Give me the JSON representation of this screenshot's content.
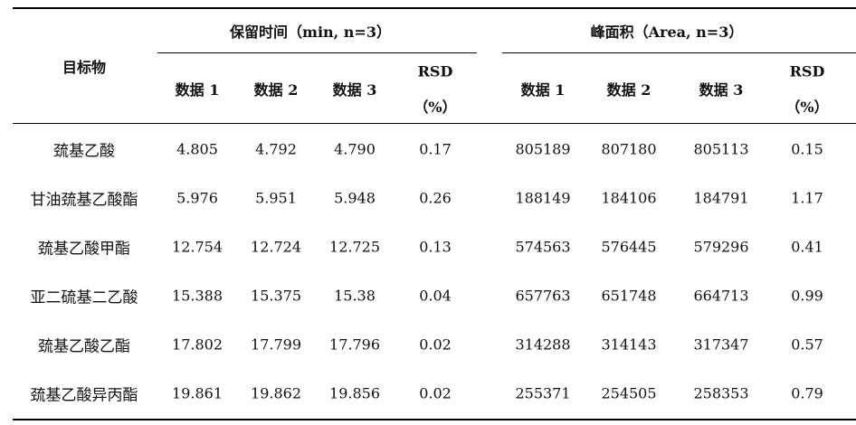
{
  "table": {
    "target_header": "目标物",
    "group_retention": "保留时间（min, n=3）",
    "group_area": "峰面积（Area, n=3）",
    "col_data1": "数据 1",
    "col_data2": "数据 2",
    "col_data3": "数据 3",
    "col_rsd": "RSD",
    "col_rsd_unit": "（%）",
    "rows": [
      {
        "name": "巯基乙酸",
        "rt": [
          "4.805",
          "4.792",
          "4.790",
          "0.17"
        ],
        "area": [
          "805189",
          "807180",
          "805113",
          "0.15"
        ]
      },
      {
        "name": "甘油巯基乙酸酯",
        "rt": [
          "5.976",
          "5.951",
          "5.948",
          "0.26"
        ],
        "area": [
          "188149",
          "184106",
          "184791",
          "1.17"
        ]
      },
      {
        "name": "巯基乙酸甲酯",
        "rt": [
          "12.754",
          "12.724",
          "12.725",
          "0.13"
        ],
        "area": [
          "574563",
          "576445",
          "579296",
          "0.41"
        ]
      },
      {
        "name": "亚二硫基二乙酸",
        "rt": [
          "15.388",
          "15.375",
          "15.38",
          "0.04"
        ],
        "area": [
          "657763",
          "651748",
          "664713",
          "0.99"
        ]
      },
      {
        "name": "巯基乙酸乙酯",
        "rt": [
          "17.802",
          "17.799",
          "17.796",
          "0.02"
        ],
        "area": [
          "314288",
          "314143",
          "317347",
          "0.57"
        ]
      },
      {
        "name": "巯基乙酸异丙酯",
        "rt": [
          "19.861",
          "19.862",
          "19.856",
          "0.02"
        ],
        "area": [
          "255371",
          "254505",
          "258353",
          "0.79"
        ]
      }
    ]
  }
}
